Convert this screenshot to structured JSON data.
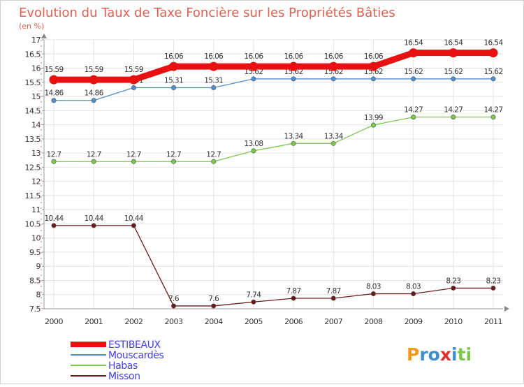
{
  "chart_data": {
    "type": "line",
    "title": "Evolution du Taux de Taxe Foncière sur les Propriétés Bâties",
    "subtitle": "(en %)",
    "x": [
      "2000",
      "2001",
      "2002",
      "2003",
      "2004",
      "2005",
      "2006",
      "2007",
      "2008",
      "2009",
      "2010",
      "2011"
    ],
    "ylim": [
      7.5,
      17
    ],
    "yticks": [
      "7.5",
      "8",
      "8.5",
      "9",
      "9.5",
      "10",
      "10.5",
      "11",
      "11.5",
      "12",
      "12.5",
      "13",
      "13.5",
      "14",
      "14.5",
      "15",
      "15.5",
      "16",
      "16.5",
      "17"
    ],
    "grid": true,
    "legend_position": "bottom-left",
    "series": [
      {
        "name": "ESTIBEAUX",
        "color": "#e81010",
        "values": [
          15.59,
          15.59,
          15.59,
          16.06,
          16.06,
          16.06,
          16.06,
          16.06,
          16.06,
          16.54,
          16.54,
          16.54
        ],
        "labels": [
          "15.59",
          "15.59",
          "15.59",
          "16.06",
          "16.06",
          "16.06",
          "16.06",
          "16.06",
          "16.06",
          "16.54",
          "16.54",
          "16.54"
        ]
      },
      {
        "name": "Mouscardès",
        "color": "#4f8fce",
        "values": [
          14.86,
          14.86,
          15.31,
          15.31,
          15.31,
          15.62,
          15.62,
          15.62,
          15.62,
          15.62,
          15.62,
          15.62
        ],
        "labels": [
          "14.86",
          "14.86",
          "15.31",
          "15.31",
          "15.31",
          "15.62",
          "15.62",
          "15.62",
          "15.62",
          "15.62",
          "15.62",
          "15.62"
        ]
      },
      {
        "name": "Habas",
        "color": "#7cc84a",
        "values": [
          12.7,
          12.7,
          12.7,
          12.7,
          12.7,
          13.08,
          13.34,
          13.34,
          13.99,
          14.27,
          14.27,
          14.27
        ],
        "labels": [
          "12.7",
          "12.7",
          "12.7",
          "12.7",
          "12.7",
          "13.08",
          "13.34",
          "13.34",
          "13.99",
          "14.27",
          "14.27",
          "14.27"
        ]
      },
      {
        "name": "Misson",
        "color": "#6b1a1a",
        "values": [
          10.44,
          10.44,
          10.44,
          7.6,
          7.6,
          7.74,
          7.87,
          7.87,
          8.03,
          8.03,
          8.23,
          8.23
        ],
        "labels": [
          "10.44",
          "10.44",
          "10.44",
          "7.6",
          "7.6",
          "7.74",
          "7.87",
          "7.87",
          "8.03",
          "8.03",
          "8.23",
          "8.23"
        ]
      }
    ]
  },
  "logo": {
    "text": "Proxiti"
  }
}
